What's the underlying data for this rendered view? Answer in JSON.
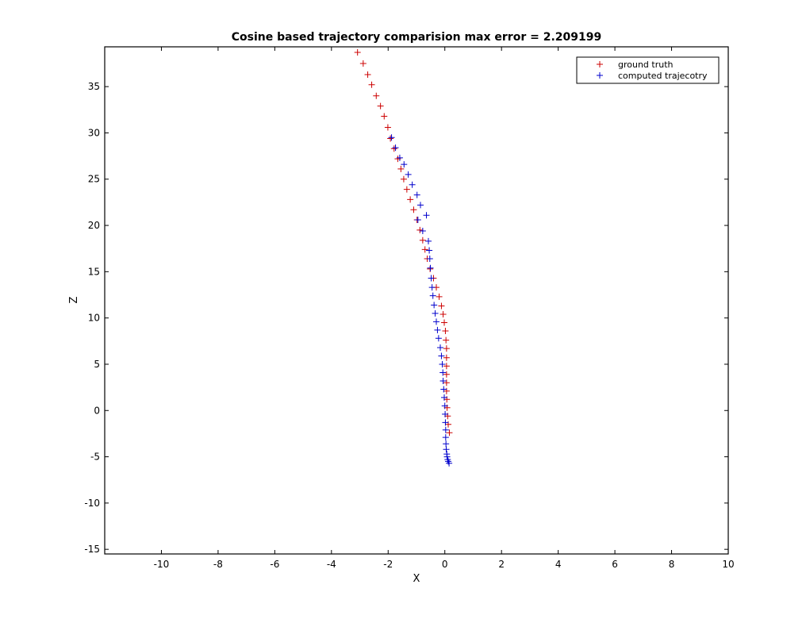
{
  "chart_data": {
    "type": "scatter",
    "title": "Cosine based trajectory comparision max error = 2.209199",
    "xlabel": "X",
    "ylabel": "Z",
    "xlim": [
      -12,
      10
    ],
    "ylim": [
      -15.5,
      39.3
    ],
    "xticks": [
      -10,
      -8,
      -6,
      -4,
      -2,
      0,
      2,
      4,
      6,
      8,
      10
    ],
    "yticks": [
      -15,
      -10,
      -5,
      0,
      5,
      10,
      15,
      20,
      25,
      30,
      35
    ],
    "grid": false,
    "marker": "+",
    "legend_position": "top-right",
    "series": [
      {
        "name": "ground truth",
        "color": "#cc0000",
        "x": [
          -3.08,
          -2.88,
          -2.72,
          -2.58,
          -2.42,
          -2.27,
          -2.14,
          -2.01,
          -1.92,
          -1.79,
          -1.66,
          -1.55,
          -1.45,
          -1.34,
          -1.22,
          -1.1,
          -0.98,
          -0.88,
          -0.78,
          -0.7,
          -0.62,
          -0.52,
          -0.4,
          -0.3,
          -0.2,
          -0.12,
          -0.06,
          -0.02,
          0.02,
          0.04,
          0.06,
          0.06,
          0.06,
          0.06,
          0.06,
          0.06,
          0.07,
          0.08,
          0.1,
          0.12,
          0.16
        ],
        "y": [
          38.7,
          37.5,
          36.3,
          35.2,
          34.0,
          32.9,
          31.8,
          30.6,
          29.4,
          28.3,
          27.2,
          26.1,
          25.0,
          23.9,
          22.8,
          21.7,
          20.6,
          19.5,
          18.4,
          17.4,
          16.4,
          15.3,
          14.3,
          13.3,
          12.3,
          11.3,
          10.4,
          9.5,
          8.6,
          7.6,
          6.7,
          5.7,
          4.8,
          3.9,
          3.0,
          2.1,
          1.2,
          0.3,
          -0.6,
          -1.5,
          -2.4
        ]
      },
      {
        "name": "computed trajecotry",
        "color": "#0000cc",
        "x": [
          -1.88,
          -1.74,
          -1.59,
          -1.44,
          -1.29,
          -1.15,
          -0.98,
          -0.86,
          -0.65,
          -0.95,
          -0.78,
          -0.58,
          -0.55,
          -0.53,
          -0.51,
          -0.48,
          -0.45,
          -0.42,
          -0.38,
          -0.34,
          -0.3,
          -0.26,
          -0.22,
          -0.16,
          -0.12,
          -0.09,
          -0.07,
          -0.06,
          -0.04,
          -0.02,
          0.0,
          0.01,
          0.02,
          0.03,
          0.03,
          0.04,
          0.05,
          0.07,
          0.08,
          0.1,
          0.12,
          0.15
        ],
        "y": [
          29.5,
          28.4,
          27.3,
          26.6,
          25.5,
          24.4,
          23.3,
          22.2,
          21.1,
          20.6,
          19.4,
          18.3,
          17.3,
          16.4,
          15.4,
          14.3,
          13.3,
          12.4,
          11.4,
          10.5,
          9.6,
          8.7,
          7.8,
          6.8,
          5.9,
          5.0,
          4.1,
          3.2,
          2.3,
          1.4,
          0.5,
          -0.4,
          -1.3,
          -2.1,
          -2.9,
          -3.6,
          -4.2,
          -4.7,
          -5.0,
          -5.3,
          -5.5,
          -5.7
        ]
      }
    ]
  }
}
